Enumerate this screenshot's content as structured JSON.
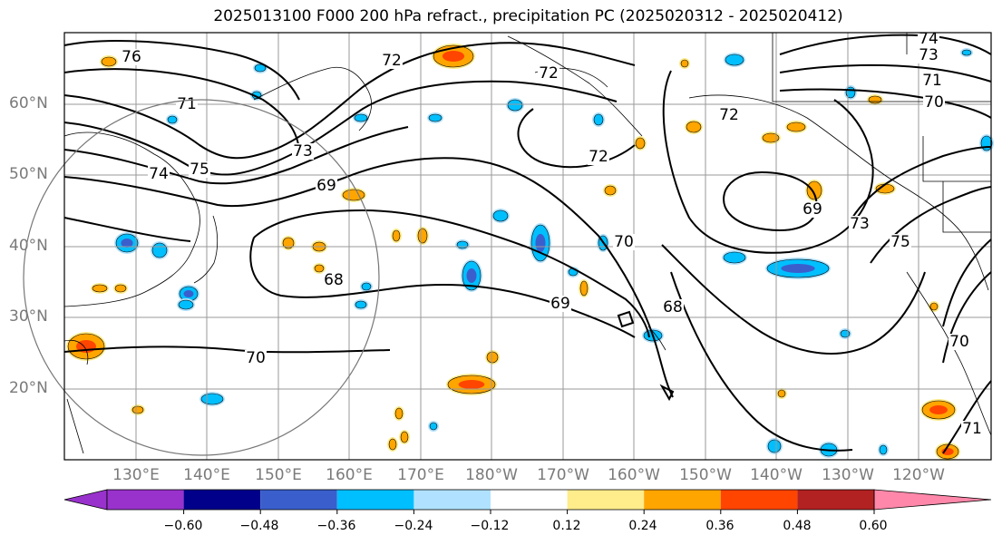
{
  "title": "2025013100 F000 200 hPa refract., precipitation PC (2025020312 - 2025020412)",
  "lat_labels": [
    "60°N",
    "50°N",
    "40°N",
    "30°N",
    "20°N"
  ],
  "lon_labels": [
    "130°E",
    "140°E",
    "150°E",
    "160°E",
    "170°E",
    "180°W",
    "170°W",
    "160°W",
    "150°W",
    "140°W",
    "130°W",
    "120°W"
  ],
  "contour_labels": [
    "76",
    "71",
    "74",
    "75",
    "73",
    "72",
    "69",
    "68",
    "70",
    "72",
    "72",
    "70",
    "69",
    "68",
    "72",
    "69",
    "73",
    "75",
    "74",
    "73",
    "71",
    "70",
    "70",
    "71"
  ],
  "colorbar": {
    "ticks": [
      "−0.60",
      "−0.48",
      "−0.36",
      "−0.24",
      "−0.12",
      "0.12",
      "0.24",
      "0.36",
      "0.48",
      "0.60"
    ],
    "colors": [
      "#9932cc",
      "#00008b",
      "#3a5fcd",
      "#00bfff",
      "#b0e2ff",
      "#ffffff",
      "#ffec8b",
      "#ffa500",
      "#ff4500",
      "#b22222",
      "#ff88aa"
    ]
  },
  "shading_colors": {
    "neg_light": "#b0e2ff",
    "neg_mid": "#00bfff",
    "neg_strong": "#3a5fcd",
    "pos_light": "#ffec8b",
    "pos_mid": "#ffa500",
    "pos_strong": "#ff4500"
  }
}
